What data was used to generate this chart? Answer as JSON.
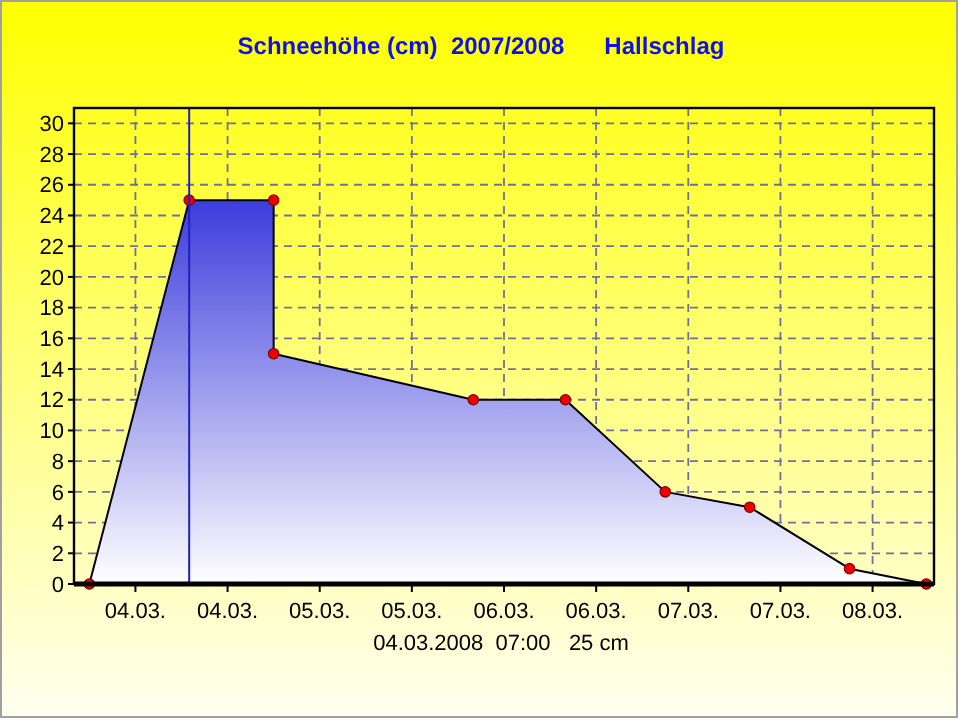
{
  "chart_data": {
    "type": "area",
    "title": "Schneehöhe (cm)  2007/2008      Hallschlag",
    "x": [
      "2008-03-03T18:00",
      "2008-03-04T07:00",
      "2008-03-04T18:00",
      "2008-03-04T18:00",
      "2008-03-05T20:00",
      "2008-03-06T08:00",
      "2008-03-06T21:00",
      "2008-03-07T08:00",
      "2008-03-07T21:00",
      "2008-03-08T07:00"
    ],
    "series": [
      {
        "color": "#3c3cdc",
        "values": [
          0,
          25,
          25,
          15,
          12,
          12,
          6,
          5,
          1,
          0
        ]
      }
    ],
    "xlim": [
      "2008-03-03T16:00",
      "2008-03-08T08:00"
    ],
    "xticks": [
      {
        "value": "2008-03-04T00:00",
        "label": "04.03."
      },
      {
        "value": "2008-03-04T12:00",
        "label": "04.03."
      },
      {
        "value": "2008-03-05T00:00",
        "label": "05.03."
      },
      {
        "value": "2008-03-05T12:00",
        "label": "05.03."
      },
      {
        "value": "2008-03-06T00:00",
        "label": "06.03."
      },
      {
        "value": "2008-03-06T12:00",
        "label": "06.03."
      },
      {
        "value": "2008-03-07T00:00",
        "label": "07.03."
      },
      {
        "value": "2008-03-07T12:00",
        "label": "07.03."
      },
      {
        "value": "2008-03-08T00:00",
        "label": "08.03."
      }
    ],
    "ylim": [
      0,
      31
    ],
    "yticks": [
      0,
      2,
      4,
      6,
      8,
      10,
      12,
      14,
      16,
      18,
      20,
      22,
      24,
      26,
      28,
      30
    ],
    "ref_lines": [
      {
        "axis": "x",
        "value": "2008-03-04T07:00",
        "color": "#2020c0"
      }
    ],
    "annotations": [
      "04.03.2008  07:00   25 cm"
    ],
    "grid": true,
    "marker": "circle",
    "line_style": "solid"
  }
}
